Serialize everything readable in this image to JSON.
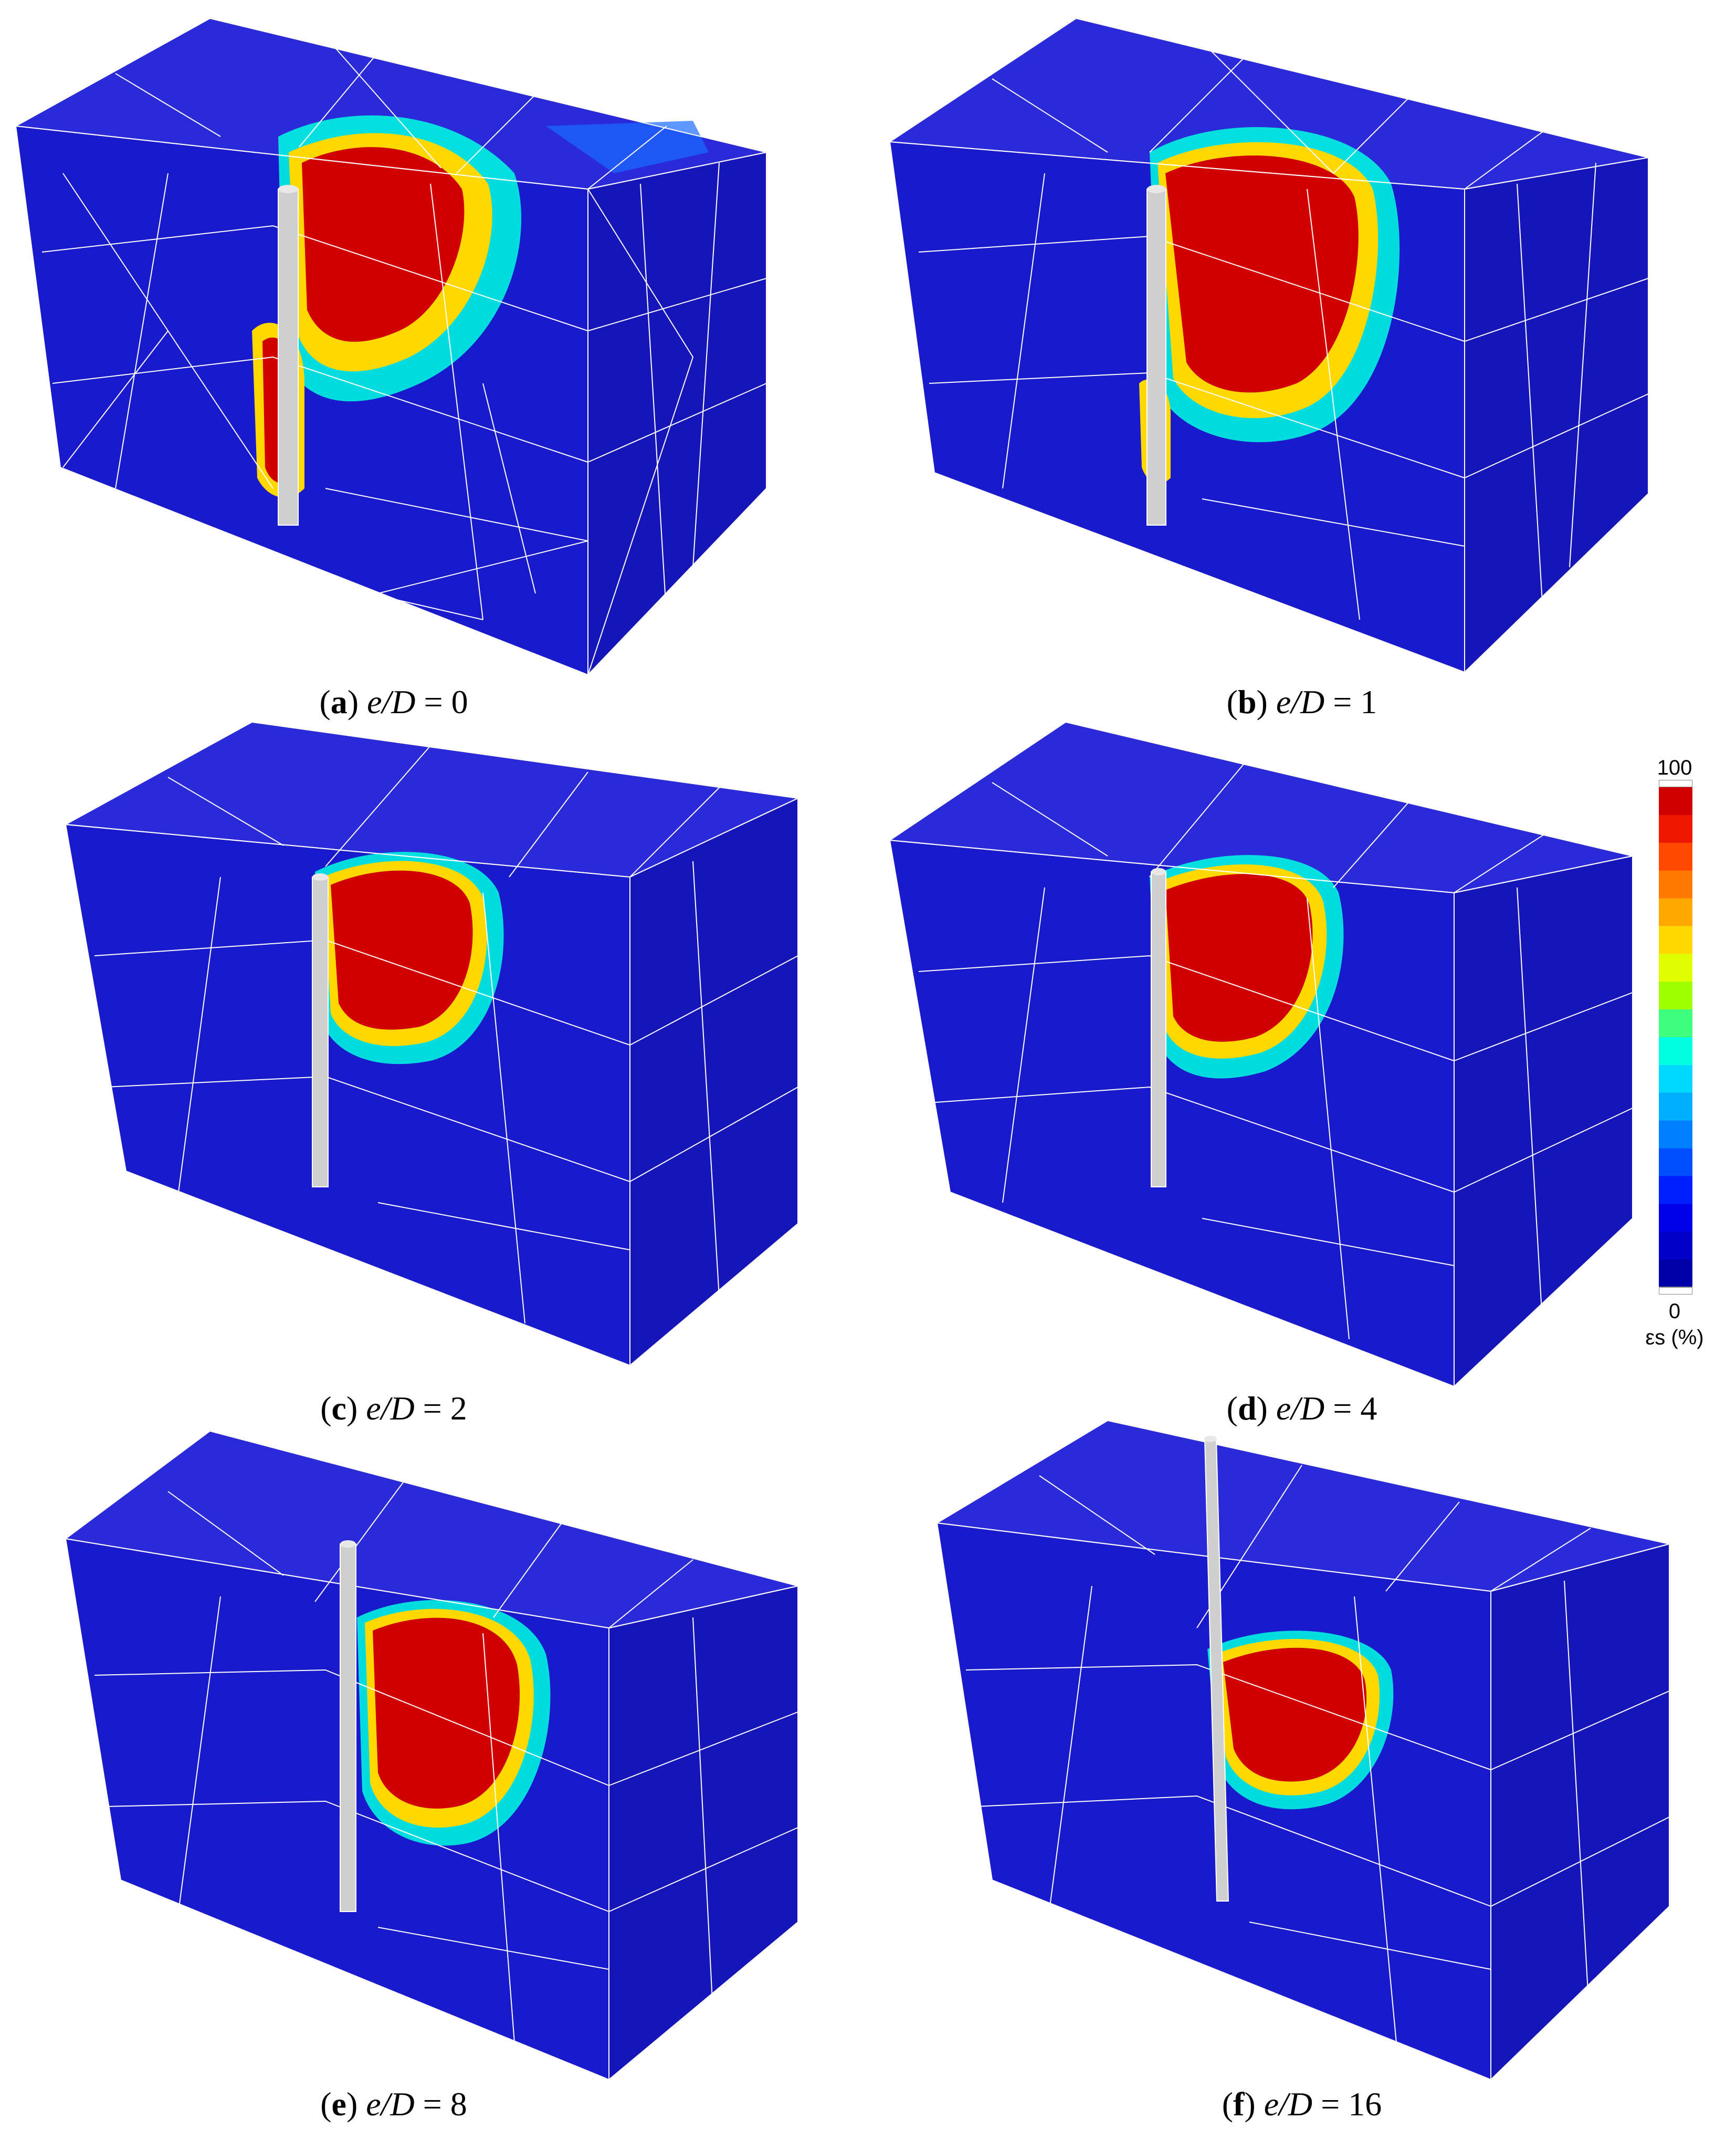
{
  "colors": {
    "soil_blue": "#1a1acd",
    "mesh_line": "#ffffff",
    "strain_high": "#d40000",
    "pile": "#c8c8c8"
  },
  "panels": [
    {
      "id": "a",
      "letter": "a",
      "ratio_label": "e/D",
      "value": "0"
    },
    {
      "id": "b",
      "letter": "b",
      "ratio_label": "e/D",
      "value": "1"
    },
    {
      "id": "c",
      "letter": "c",
      "ratio_label": "e/D",
      "value": "2"
    },
    {
      "id": "d",
      "letter": "d",
      "ratio_label": "e/D",
      "value": "4"
    },
    {
      "id": "e",
      "letter": "e",
      "ratio_label": "e/D",
      "value": "8"
    },
    {
      "id": "f",
      "letter": "f",
      "ratio_label": "e/D",
      "value": "16"
    }
  ],
  "legend": {
    "max_label": "100",
    "min_label": "0",
    "unit_label": "εs (%)",
    "levels": [
      "#0000a8",
      "#0000c8",
      "#0000e8",
      "#0020ff",
      "#0050ff",
      "#0080ff",
      "#00b0ff",
      "#00d8ff",
      "#00ffe0",
      "#40ff80",
      "#a0ff00",
      "#e0ff00",
      "#ffd800",
      "#ffa800",
      "#ff7800",
      "#ff4800",
      "#ee1800",
      "#d00000"
    ]
  }
}
